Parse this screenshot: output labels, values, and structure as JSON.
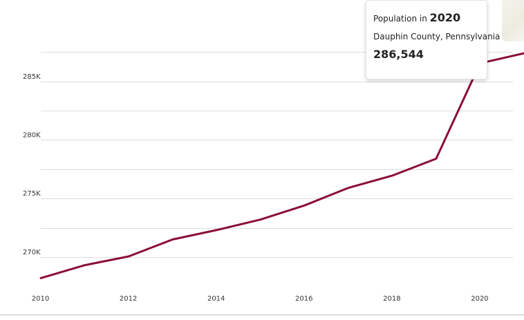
{
  "chart_data": {
    "type": "line",
    "title": "",
    "xlabel": "",
    "ylabel": "",
    "x": [
      2010,
      2011,
      2012,
      2013,
      2014,
      2015,
      2016,
      2017,
      2018,
      2019,
      2020,
      2021
    ],
    "series": [
      {
        "values": [
          268200,
          269300,
          270050,
          271500,
          272300,
          273200,
          274400,
          275900,
          276950,
          278400,
          286544,
          287400
        ]
      }
    ],
    "x_ticks": [
      "2010",
      "2012",
      "2014",
      "2016",
      "2018",
      "2020"
    ],
    "y_ticks": [
      "270K",
      "275K",
      "280K",
      "285K"
    ],
    "y_tick_values": [
      270000,
      275000,
      280000,
      285000
    ],
    "xlim": [
      2010,
      2021
    ],
    "ylim": [
      267750,
      289000
    ],
    "grid": true,
    "line_color": "#8a0b3b"
  },
  "tooltip": {
    "label": "Population in",
    "year": "2020",
    "region": "Dauphin County, Pennsylvania",
    "value": "286,544"
  },
  "colors": {
    "grid": "#dcdcdc",
    "axis": "#c9c9c9",
    "line": "#8a0b3b"
  }
}
